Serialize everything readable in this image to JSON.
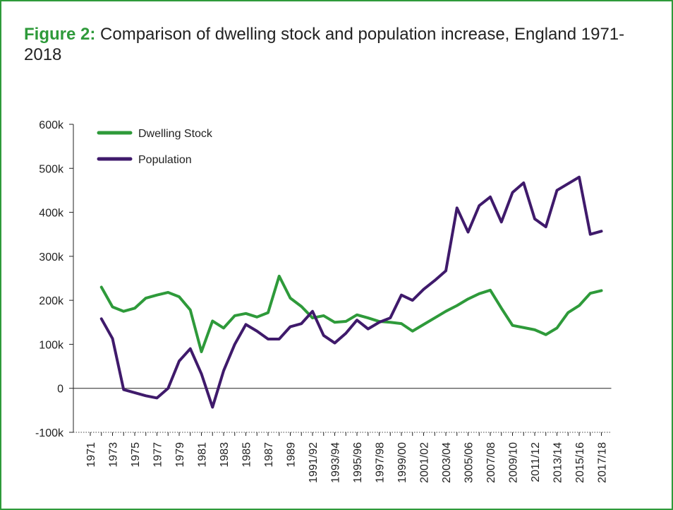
{
  "title": {
    "label": "Figure 2:",
    "text": "Comparison of dwelling stock and population increase, England 1971-2018"
  },
  "colors": {
    "frame": "#2e9a3a",
    "dwelling": "#2e9a3a",
    "population": "#3f1a6b"
  },
  "chart_data": {
    "type": "line",
    "categories": [
      "1971",
      "1972",
      "1973",
      "1974",
      "1975",
      "1976",
      "1977",
      "1978",
      "1979",
      "1980",
      "1981",
      "1982",
      "1983",
      "1984",
      "1985",
      "1986",
      "1987",
      "1988",
      "1989",
      "1990",
      "1991/92",
      "1992/93",
      "1993/94",
      "1994/95",
      "1995/96",
      "1996/97",
      "1997/98",
      "1998/99",
      "1999/00",
      "2000/01",
      "2001/02",
      "2002/03",
      "2003/04",
      "2004/05",
      "3005/06",
      "2006/07",
      "2007/08",
      "2008/09",
      "2009/10",
      "2010/11",
      "2011/12",
      "2012/13",
      "2013/14",
      "2014/15",
      "2015/16",
      "2016/17",
      "2017/18"
    ],
    "tick_labels": [
      "1971",
      "1973",
      "1975",
      "1977",
      "1979",
      "1981",
      "1983",
      "1985",
      "1987",
      "1989",
      "1991/92",
      "1993/94",
      "1995/96",
      "1997/98",
      "1999/00",
      "2001/02",
      "2003/04",
      "3005/06",
      "2007/08",
      "2009/10",
      "2011/12",
      "2013/14",
      "2015/16",
      "2017/18"
    ],
    "series": [
      {
        "name": "Dwelling Stock",
        "color": "#2e9a3a",
        "values": [
          null,
          230000,
          185000,
          175000,
          182000,
          205000,
          212000,
          218000,
          208000,
          178000,
          83000,
          153000,
          137000,
          165000,
          170000,
          162000,
          172000,
          255000,
          205000,
          186000,
          160000,
          165000,
          150000,
          152000,
          167000,
          160000,
          152000,
          150000,
          147000,
          130000,
          145000,
          160000,
          175000,
          188000,
          203000,
          215000,
          223000,
          182000,
          143000,
          138000,
          133000,
          122000,
          137000,
          172000,
          188000,
          216000,
          222000
        ]
      },
      {
        "name": "Population",
        "color": "#3f1a6b",
        "values": [
          null,
          158000,
          113000,
          -3000,
          -10000,
          -17000,
          -22000,
          0,
          62000,
          90000,
          33000,
          -43000,
          40000,
          100000,
          145000,
          130000,
          112000,
          112000,
          140000,
          147000,
          175000,
          120000,
          103000,
          125000,
          155000,
          135000,
          150000,
          160000,
          212000,
          200000,
          225000,
          245000,
          267000,
          410000,
          355000,
          415000,
          435000,
          378000,
          445000,
          467000,
          385000,
          367000,
          450000,
          465000,
          480000,
          350000,
          357000
        ]
      }
    ],
    "y_ticks": [
      -100000,
      0,
      100000,
      200000,
      300000,
      400000,
      500000,
      600000
    ],
    "y_tick_labels": [
      "-100k",
      "0",
      "100k",
      "200k",
      "300k",
      "400k",
      "500k",
      "600k"
    ],
    "ylim": [
      -100000,
      600000
    ],
    "grid": false,
    "legend_position": "top-left"
  }
}
